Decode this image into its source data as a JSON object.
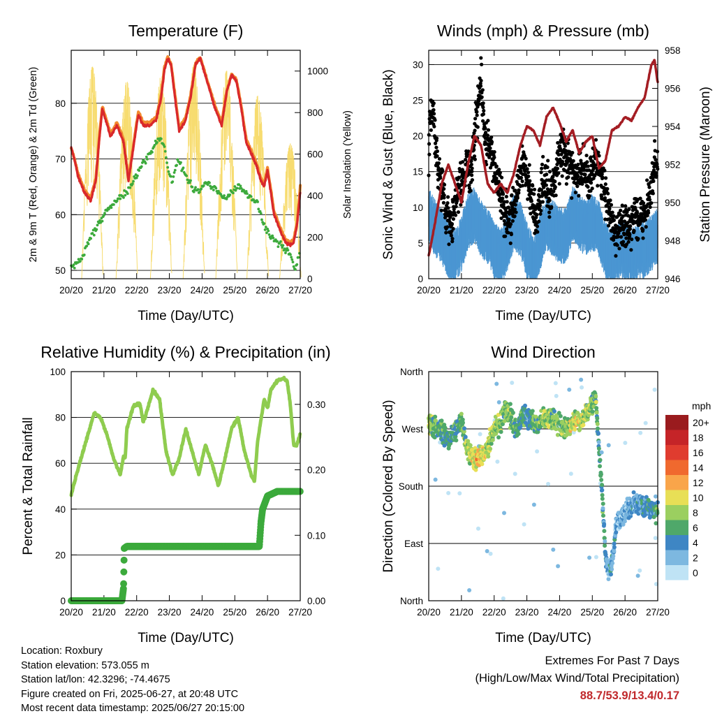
{
  "x_ticks": [
    "20/20",
    "21/20",
    "22/20",
    "23/20",
    "24/20",
    "25/20",
    "26/20",
    "27/20"
  ],
  "chart_data": [
    {
      "type": "line",
      "title": "Temperature (F)",
      "xlabel": "Time (Day/UTC)",
      "ylabel": "2m & 9m T (Red, Orange) & 2m Td (Green)",
      "ylabel_right": "Solar Insolation (Yellow)",
      "x_range_days": [
        0,
        7
      ],
      "ylim": [
        48.5,
        89.5
      ],
      "ylim_right": [
        0,
        1100
      ],
      "yticks": [
        50,
        60,
        70,
        80
      ],
      "yticks_right": [
        0,
        200,
        400,
        600,
        800,
        1000
      ],
      "grid": true,
      "series": [
        {
          "name": "2m T",
          "color": "#d9282b",
          "axis": "left",
          "x": [
            0,
            0.1,
            0.2,
            0.4,
            0.6,
            0.75,
            0.85,
            0.95,
            1.05,
            1.2,
            1.4,
            1.6,
            1.75,
            1.9,
            2.05,
            2.2,
            2.4,
            2.6,
            2.75,
            2.85,
            2.95,
            3.05,
            3.15,
            3.3,
            3.5,
            3.65,
            3.8,
            3.95,
            4.05,
            4.2,
            4.4,
            4.6,
            4.75,
            4.9,
            5.05,
            5.2,
            5.35,
            5.5,
            5.65,
            5.8,
            5.9,
            6.0,
            6.2,
            6.4,
            6.55,
            6.7,
            6.8,
            6.9,
            7.0
          ],
          "y": [
            72,
            70,
            67,
            64,
            62.5,
            66,
            73,
            79,
            77,
            74,
            76,
            73,
            66,
            72,
            78,
            76,
            76,
            77,
            81,
            86,
            88,
            87,
            82,
            75,
            77,
            81,
            87,
            88,
            86,
            83,
            79,
            76,
            82,
            85,
            84,
            79,
            73,
            71,
            69,
            66,
            65,
            68,
            60,
            57,
            55,
            54.5,
            55,
            58,
            64
          ]
        },
        {
          "name": "9m T",
          "color": "#f28a2e",
          "axis": "left",
          "x": [
            0,
            0.1,
            0.2,
            0.4,
            0.6,
            0.75,
            0.85,
            0.95,
            1.05,
            1.2,
            1.4,
            1.6,
            1.75,
            1.9,
            2.05,
            2.2,
            2.4,
            2.6,
            2.75,
            2.85,
            2.95,
            3.05,
            3.15,
            3.3,
            3.5,
            3.65,
            3.8,
            3.95,
            4.05,
            4.2,
            4.4,
            4.6,
            4.75,
            4.9,
            5.05,
            5.2,
            5.35,
            5.5,
            5.65,
            5.8,
            5.9,
            6.0,
            6.2,
            6.4,
            6.55,
            6.7,
            6.8,
            6.9,
            7.0
          ],
          "y": [
            72,
            70,
            67.5,
            64.5,
            63,
            66.5,
            73.5,
            79.5,
            77.5,
            74.5,
            76.5,
            73.5,
            66.5,
            72.5,
            78.5,
            76.5,
            76.5,
            77.5,
            81.5,
            86.5,
            88.2,
            87.2,
            82.5,
            75.5,
            77.5,
            81.5,
            87.2,
            88.2,
            86.2,
            83.2,
            79.5,
            76.5,
            82.2,
            85.2,
            84.2,
            79.5,
            73.5,
            71.5,
            69.5,
            66.5,
            65.5,
            68.5,
            60.5,
            57.5,
            55.5,
            55,
            55.5,
            58.5,
            65
          ]
        },
        {
          "name": "2m Td",
          "color": "#3caa3c",
          "axis": "left",
          "x": [
            0,
            0.3,
            0.6,
            0.9,
            1.1,
            1.3,
            1.5,
            1.7,
            1.9,
            2.1,
            2.3,
            2.5,
            2.7,
            2.85,
            3.0,
            3.1,
            3.25,
            3.5,
            3.7,
            3.9,
            4.1,
            4.3,
            4.5,
            4.7,
            4.9,
            5.1,
            5.3,
            5.5,
            5.7,
            5.9,
            6.1,
            6.3,
            6.5,
            6.7,
            6.85,
            7.0
          ],
          "y": [
            50.5,
            52,
            56,
            59,
            61,
            62,
            63,
            64,
            66,
            68,
            70,
            72,
            74,
            72,
            67,
            66,
            70,
            67,
            65,
            64,
            66,
            65,
            64,
            63,
            64,
            65,
            64,
            63,
            62,
            58,
            56,
            55,
            54,
            53,
            50,
            53.5
          ]
        },
        {
          "name": "Solar Insolation",
          "color": "#f6d860",
          "axis": "right",
          "peaks": [
            {
              "day": 0.65,
              "value": 1020
            },
            {
              "day": 1.7,
              "value": 950
            },
            {
              "day": 2.75,
              "value": 980
            },
            {
              "day": 3.75,
              "value": 1030
            },
            {
              "day": 4.75,
              "value": 1000
            },
            {
              "day": 5.7,
              "value": 880
            },
            {
              "day": 6.7,
              "value": 650
            }
          ]
        }
      ]
    },
    {
      "type": "line",
      "title": "Winds (mph) & Pressure (mb)",
      "xlabel": "Time (Day/UTC)",
      "ylabel": "Sonic Wind & Gust (Blue, Black)",
      "ylabel_right": "Station Pressure (Maroon)",
      "x_range_days": [
        0,
        7
      ],
      "ylim": [
        0,
        32
      ],
      "ylim_right": [
        946,
        958
      ],
      "yticks": [
        0,
        5,
        10,
        15,
        20,
        25,
        30
      ],
      "yticks_right": [
        946,
        948,
        950,
        952,
        954,
        956,
        958
      ],
      "grid": true,
      "series": [
        {
          "name": "Sonic Wind",
          "color": "#4b96d2",
          "axis": "left",
          "x": [
            0,
            0.2,
            0.4,
            0.6,
            0.8,
            1.0,
            1.2,
            1.4,
            1.6,
            1.8,
            2.0,
            2.2,
            2.4,
            2.6,
            2.8,
            3.0,
            3.2,
            3.4,
            3.6,
            3.8,
            4.0,
            4.2,
            4.4,
            4.6,
            4.8,
            5.0,
            5.2,
            5.4,
            5.6,
            5.8,
            6.0,
            6.2,
            6.4,
            6.6,
            6.8,
            7.0
          ],
          "y": [
            9,
            7,
            6,
            4,
            3,
            5,
            8,
            9,
            7,
            6,
            4,
            3,
            5,
            8,
            7,
            4,
            2,
            5,
            8,
            7,
            6,
            6,
            9,
            8,
            7,
            8,
            7,
            4,
            3,
            4,
            4,
            3,
            4,
            4,
            5,
            6
          ]
        },
        {
          "name": "Gust",
          "color": "#000000",
          "axis": "left",
          "x": [
            0,
            0.1,
            0.3,
            0.5,
            0.7,
            0.9,
            1.1,
            1.3,
            1.5,
            1.6,
            1.7,
            1.9,
            2.1,
            2.3,
            2.5,
            2.7,
            2.9,
            3.1,
            3.3,
            3.5,
            3.7,
            3.9,
            4.1,
            4.3,
            4.5,
            4.7,
            4.9,
            5.1,
            5.3,
            5.5,
            5.7,
            5.9,
            6.1,
            6.3,
            6.5,
            6.7,
            6.9,
            7.0
          ],
          "y": [
            18,
            25,
            15,
            10,
            8,
            12,
            16,
            15,
            24,
            28,
            20,
            18,
            14,
            10,
            8,
            12,
            16,
            12,
            8,
            14,
            12,
            15,
            18,
            16,
            14,
            16,
            14,
            17,
            14,
            10,
            6,
            8,
            7,
            9,
            8,
            10,
            16,
            15
          ]
        },
        {
          "name": "Station Pressure",
          "color": "#a41d23",
          "axis": "right",
          "x": [
            0,
            0.2,
            0.4,
            0.6,
            0.8,
            1.0,
            1.2,
            1.4,
            1.6,
            1.8,
            2.0,
            2.2,
            2.4,
            2.6,
            2.8,
            3.0,
            3.2,
            3.4,
            3.6,
            3.8,
            4.0,
            4.2,
            4.4,
            4.6,
            4.8,
            5.0,
            5.2,
            5.4,
            5.6,
            5.8,
            6.0,
            6.2,
            6.4,
            6.6,
            6.8,
            6.9,
            7.0
          ],
          "y": [
            947.2,
            949,
            951,
            952,
            951,
            950,
            952,
            953.5,
            953,
            951,
            950.5,
            951,
            950.5,
            951.5,
            953,
            954,
            953.8,
            953,
            954.5,
            955,
            954.2,
            953.2,
            953.8,
            952.6,
            953.2,
            953.5,
            951.8,
            952.2,
            953.8,
            954,
            954.5,
            954.3,
            955,
            955.5,
            957.2,
            957.5,
            956.3
          ]
        }
      ]
    },
    {
      "type": "line",
      "title": "Relative Humidity (%) & Precipitation (in)",
      "xlabel": "Time (Day/UTC)",
      "ylabel": "Percent & Total Rainfall",
      "x_range_days": [
        0,
        7
      ],
      "ylim": [
        0,
        100
      ],
      "ylim_right": [
        0,
        0.35
      ],
      "yticks": [
        0,
        20,
        40,
        60,
        80,
        100
      ],
      "yticks_right": [
        0.0,
        0.1,
        0.2,
        0.3
      ],
      "ytick_labels_right": [
        "0.00",
        "0.10",
        "0.20",
        "0.30"
      ],
      "grid": true,
      "series": [
        {
          "name": "Relative Humidity",
          "color": "#8fcc4f",
          "axis": "left",
          "x": [
            0,
            0.1,
            0.3,
            0.5,
            0.7,
            0.9,
            1.1,
            1.3,
            1.5,
            1.6,
            1.65,
            1.7,
            1.9,
            2.1,
            2.2,
            2.3,
            2.5,
            2.7,
            2.9,
            3.1,
            3.3,
            3.5,
            3.7,
            3.9,
            4.1,
            4.3,
            4.5,
            4.7,
            4.9,
            5.1,
            5.3,
            5.5,
            5.6,
            5.7,
            5.9,
            6.0,
            6.1,
            6.3,
            6.5,
            6.6,
            6.7,
            6.8,
            6.9,
            7.0
          ],
          "y": [
            46,
            52,
            62,
            72,
            82,
            80,
            72,
            62,
            55,
            63,
            62,
            75,
            85,
            86,
            78,
            82,
            92,
            88,
            65,
            55,
            62,
            75,
            65,
            55,
            68,
            60,
            50,
            62,
            75,
            80,
            65,
            55,
            52,
            70,
            88,
            84,
            92,
            96,
            97,
            96,
            85,
            68,
            68,
            73
          ]
        },
        {
          "name": "Total Precipitation",
          "color": "#3caa3c",
          "axis": "right",
          "x": [
            0,
            1.55,
            1.6,
            1.62,
            1.7,
            5.75,
            5.8,
            5.85,
            6.0,
            6.3,
            7.0
          ],
          "y": [
            0,
            0,
            0.02,
            0.08,
            0.083,
            0.083,
            0.12,
            0.14,
            0.16,
            0.167,
            0.167
          ]
        }
      ]
    },
    {
      "type": "scatter",
      "title": "Wind Direction",
      "xlabel": "Time (Day/UTC)",
      "ylabel": "Direction (Colored By Speed)",
      "x_range_days": [
        0,
        7
      ],
      "ylim": [
        0,
        360
      ],
      "yticks": [
        0,
        90,
        180,
        270,
        360
      ],
      "ytick_labels": [
        "North",
        "East",
        "South",
        "West",
        "North"
      ],
      "grid": true,
      "color_scale": {
        "label": "mph",
        "levels": [
          "20+",
          "18",
          "16",
          "14",
          "12",
          "10",
          "8",
          "6",
          "4",
          "2",
          "0"
        ],
        "colors": [
          "#9a1b1e",
          "#c52428",
          "#e03c2f",
          "#f0692e",
          "#f9a54a",
          "#e8df56",
          "#9bcf60",
          "#4fa86a",
          "#3e86c4",
          "#7db8e0",
          "#bfe3f5"
        ]
      },
      "direction_trend": {
        "x": [
          0,
          0.2,
          0.4,
          0.6,
          0.8,
          1.0,
          1.2,
          1.4,
          1.5,
          1.7,
          1.8,
          2.0,
          2.2,
          2.3,
          2.5,
          2.7,
          2.9,
          3.1,
          3.3,
          3.5,
          3.7,
          3.9,
          4.1,
          4.3,
          4.5,
          4.7,
          4.9,
          5.1,
          5.3,
          5.4,
          5.5,
          5.6,
          5.7,
          5.8,
          6.0,
          6.2,
          6.4,
          6.6,
          6.8,
          7.0
        ],
        "y": [
          280,
          275,
          265,
          255,
          265,
          285,
          235,
          220,
          225,
          230,
          240,
          270,
          280,
          300,
          290,
          270,
          295,
          285,
          275,
          285,
          290,
          280,
          270,
          275,
          280,
          285,
          300,
          320,
          170,
          70,
          40,
          60,
          110,
          125,
          140,
          150,
          155,
          150,
          145,
          140
        ]
      },
      "speed_trend": {
        "x": [
          0,
          0.5,
          1.0,
          1.5,
          2.0,
          2.5,
          3.0,
          3.5,
          4.0,
          4.5,
          5.0,
          5.5,
          6.0,
          6.5,
          7.0
        ],
        "y": [
          9,
          6,
          7,
          12,
          9,
          8,
          5,
          9,
          8,
          10,
          9,
          4,
          3,
          5,
          6
        ]
      }
    }
  ],
  "info": {
    "location": "Location: Roxbury",
    "elevation": "Station elevation: 573.055 m",
    "latlon": "Station lat/lon: 42.3296; -74.4675",
    "created": "Figure created on Fri, 2025-06-27, at 20:48 UTC",
    "timestamp": "Most recent data timestamp: 2025/06/27 20:15:00"
  },
  "extremes": {
    "title": "Extremes For Past 7 Days",
    "subtitle": "(High/Low/Max Wind/Total Precipitation)",
    "values": "88.7/53.9/13.4/0.17"
  }
}
